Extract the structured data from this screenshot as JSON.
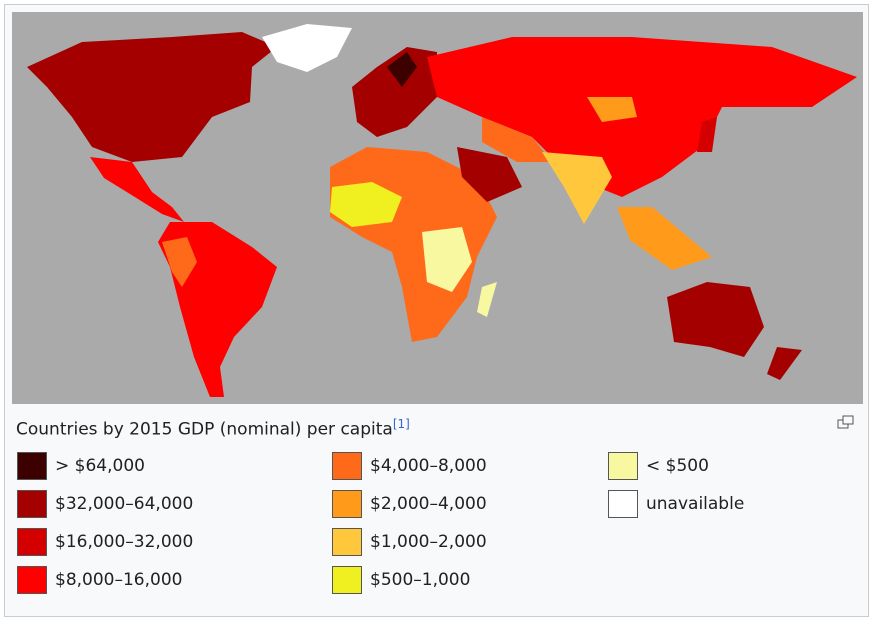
{
  "caption": {
    "text": "Countries by 2015 GDP (nominal) per capita",
    "reference": "[1]"
  },
  "legend": [
    {
      "label": "> $64,000",
      "color": "#3d0000"
    },
    {
      "label": "$32,000–64,000",
      "color": "#a50000"
    },
    {
      "label": "$16,000–32,000",
      "color": "#d40000"
    },
    {
      "label": "$8,000–16,000",
      "color": "#ff0000"
    },
    {
      "label": "$4,000–8,000",
      "color": "#ff6a1a"
    },
    {
      "label": "$2,000–4,000",
      "color": "#ff9a1a"
    },
    {
      "label": "$1,000–2,000",
      "color": "#ffc83c"
    },
    {
      "label": "$500–1,000",
      "color": "#f0f020"
    },
    {
      "label": "< $500",
      "color": "#f8f8a0"
    },
    {
      "label": "unavailable",
      "color": "#ffffff"
    }
  ]
}
